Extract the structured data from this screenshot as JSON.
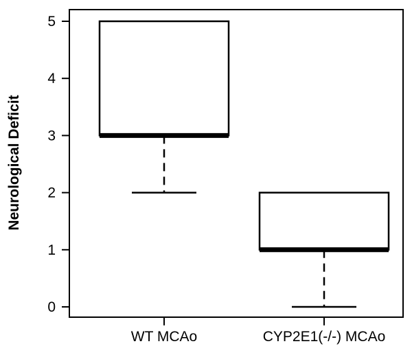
{
  "chart_data": {
    "type": "boxplot",
    "title": "",
    "xlabel": "",
    "ylabel": "Neurological Deficit",
    "ylim": [
      0,
      5
    ],
    "yticks": [
      0,
      1,
      2,
      3,
      4,
      5
    ],
    "grid": false,
    "legend": "none",
    "categories": [
      "WT MCAo",
      "CYP2E1(-/-) MCAo"
    ],
    "boxes": [
      {
        "category": "WT MCAo",
        "min": 2,
        "q1": 3,
        "median": 3,
        "q3": 5,
        "max": 5
      },
      {
        "category": "CYP2E1(-/-) MCAo",
        "min": 0,
        "q1": 1,
        "median": 1,
        "q3": 2,
        "max": 2
      }
    ],
    "colors": {
      "box_fill": "#ffffff",
      "stroke": "#000000"
    }
  }
}
